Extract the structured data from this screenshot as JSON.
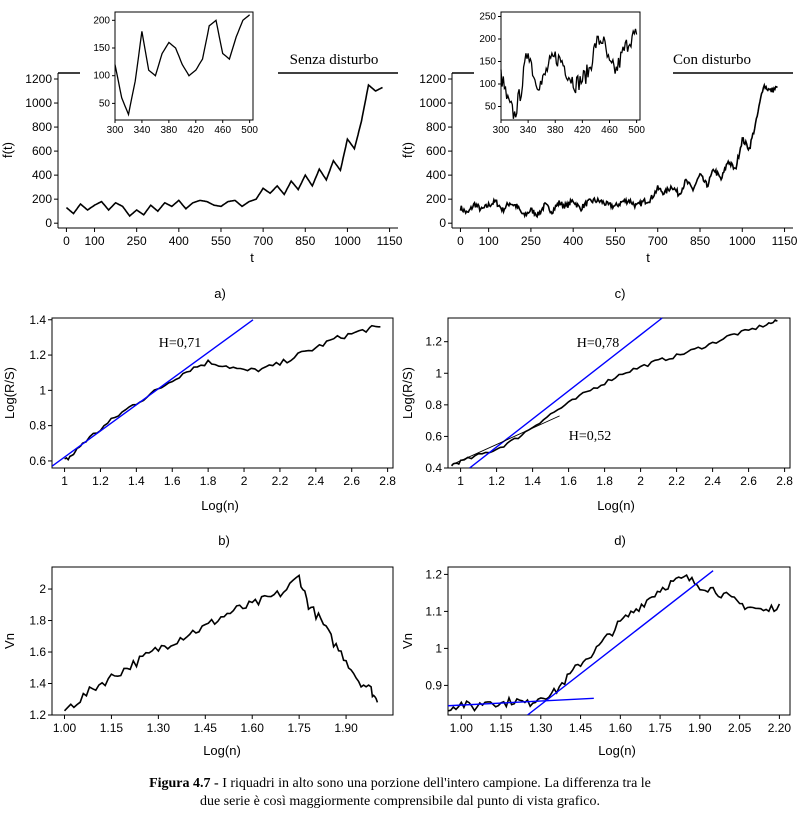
{
  "caption": {
    "label": "Figura 4.7 -",
    "line1": " I riquadri in alto sono una porzione dell'intero campione. La  differenza tra le",
    "line2": "due serie è così maggiormente comprensibile dal punto di vista grafico."
  },
  "chart_data": [
    {
      "id": "a",
      "type": "line",
      "panel_label": "a)",
      "annotation": "Senza disturbo",
      "xlabel": "t",
      "ylabel": "f(t)",
      "xlim": [
        -30,
        1180
      ],
      "ylim": [
        -40,
        1250
      ],
      "xticks": [
        0,
        100,
        250,
        400,
        550,
        700,
        850,
        1000,
        1150
      ],
      "yticks": [
        0,
        200,
        400,
        600,
        800,
        1000,
        1200
      ],
      "series": [
        {
          "color": "#000000",
          "noise": 0,
          "x": [
            0,
            25,
            50,
            75,
            100,
            125,
            150,
            175,
            200,
            225,
            250,
            275,
            300,
            325,
            350,
            375,
            400,
            425,
            450,
            475,
            500,
            525,
            550,
            575,
            600,
            625,
            650,
            675,
            700,
            725,
            750,
            775,
            800,
            825,
            850,
            875,
            900,
            925,
            950,
            975,
            1000,
            1025,
            1050,
            1075,
            1100,
            1125
          ],
          "y": [
            130,
            80,
            160,
            110,
            150,
            180,
            110,
            170,
            140,
            60,
            110,
            70,
            150,
            100,
            170,
            140,
            190,
            120,
            170,
            190,
            180,
            150,
            140,
            180,
            190,
            140,
            180,
            200,
            290,
            250,
            310,
            240,
            350,
            280,
            400,
            310,
            450,
            360,
            520,
            440,
            700,
            620,
            850,
            1150,
            1100,
            1130
          ]
        }
      ],
      "inset": {
        "x": [
          300,
          310,
          320,
          330,
          340,
          350,
          360,
          370,
          380,
          390,
          400,
          410,
          420,
          430,
          440,
          450,
          460,
          470,
          480,
          490,
          500
        ],
        "y": [
          120,
          60,
          30,
          90,
          180,
          110,
          100,
          140,
          160,
          150,
          120,
          100,
          110,
          130,
          190,
          200,
          140,
          130,
          170,
          200,
          210
        ],
        "xticks": [
          300,
          340,
          380,
          420,
          460,
          500
        ],
        "yticks": [
          50,
          100,
          150,
          200
        ],
        "xlim": [
          300,
          505
        ],
        "ylim": [
          20,
          215
        ]
      }
    },
    {
      "id": "c",
      "type": "line",
      "panel_label": "c)",
      "annotation": "Con disturbo",
      "xlabel": "t",
      "ylabel": "f(t)",
      "xlim": [
        -30,
        1180
      ],
      "ylim": [
        -40,
        1250
      ],
      "xticks": [
        0,
        100,
        250,
        400,
        550,
        700,
        850,
        1000,
        1150
      ],
      "yticks": [
        0,
        200,
        400,
        600,
        800,
        1000,
        1200
      ],
      "series": [
        {
          "color": "#000000",
          "noise": 25,
          "x": [
            0,
            25,
            50,
            75,
            100,
            125,
            150,
            175,
            200,
            225,
            250,
            275,
            300,
            325,
            350,
            375,
            400,
            425,
            450,
            475,
            500,
            525,
            550,
            575,
            600,
            625,
            650,
            675,
            700,
            725,
            750,
            775,
            800,
            825,
            850,
            875,
            900,
            925,
            950,
            975,
            1000,
            1025,
            1050,
            1075,
            1100,
            1125
          ],
          "y": [
            130,
            80,
            160,
            110,
            150,
            180,
            110,
            170,
            140,
            60,
            110,
            70,
            150,
            100,
            170,
            140,
            190,
            120,
            170,
            190,
            180,
            150,
            140,
            180,
            190,
            140,
            180,
            200,
            290,
            250,
            310,
            240,
            350,
            280,
            400,
            310,
            450,
            360,
            520,
            440,
            700,
            620,
            850,
            1150,
            1100,
            1130
          ]
        }
      ],
      "inset": {
        "x": [
          300,
          310,
          320,
          330,
          340,
          350,
          360,
          370,
          380,
          390,
          400,
          410,
          420,
          430,
          440,
          450,
          460,
          470,
          480,
          490,
          500
        ],
        "y": [
          120,
          60,
          30,
          90,
          180,
          110,
          100,
          140,
          160,
          150,
          120,
          100,
          110,
          130,
          190,
          200,
          140,
          130,
          170,
          200,
          210
        ],
        "xticks": [
          300,
          340,
          380,
          420,
          460,
          500
        ],
        "yticks": [
          50,
          100,
          150,
          200,
          250
        ],
        "xlim": [
          300,
          505
        ],
        "ylim": [
          20,
          260
        ],
        "noise": 20
      }
    },
    {
      "id": "b",
      "type": "line",
      "panel_label": "b)",
      "xlabel": "Log(n)",
      "ylabel": "Log(R/S)",
      "xlim": [
        0.93,
        2.83
      ],
      "ylim": [
        0.56,
        1.41
      ],
      "xticks": [
        1.0,
        1.2,
        1.4,
        1.6,
        1.8,
        2.0,
        2.2,
        2.4,
        2.6,
        2.8
      ],
      "yticks": [
        0.6,
        0.8,
        1.0,
        1.2,
        1.4
      ],
      "series": [
        {
          "color": "#000000",
          "noise": 0.015,
          "x": [
            1.0,
            1.05,
            1.1,
            1.2,
            1.3,
            1.4,
            1.5,
            1.6,
            1.7,
            1.8,
            1.9,
            2.0,
            2.1,
            2.2,
            2.3,
            2.4,
            2.5,
            2.6,
            2.7,
            2.76
          ],
          "y": [
            0.6,
            0.64,
            0.7,
            0.78,
            0.86,
            0.93,
            0.99,
            1.06,
            1.12,
            1.16,
            1.14,
            1.11,
            1.12,
            1.15,
            1.2,
            1.24,
            1.29,
            1.32,
            1.35,
            1.36
          ]
        }
      ],
      "fit_lines": [
        {
          "label": "H=0,71",
          "color": "#0000ff",
          "x": [
            0.93,
            2.05
          ],
          "y": [
            0.57,
            1.4
          ]
        }
      ]
    },
    {
      "id": "d",
      "type": "line",
      "panel_label": "d)",
      "xlabel": "Log(n)",
      "ylabel": "Log(R/S)",
      "xlim": [
        0.93,
        2.83
      ],
      "ylim": [
        0.4,
        1.35
      ],
      "xticks": [
        1.0,
        1.2,
        1.4,
        1.6,
        1.8,
        2.0,
        2.2,
        2.4,
        2.6,
        2.8
      ],
      "yticks": [
        0.4,
        0.6,
        0.8,
        1.0,
        1.2
      ],
      "series": [
        {
          "color": "#000000",
          "noise": 0.012,
          "x": [
            0.95,
            1.0,
            1.1,
            1.2,
            1.3,
            1.4,
            1.5,
            1.6,
            1.7,
            1.8,
            1.9,
            2.0,
            2.1,
            2.2,
            2.3,
            2.4,
            2.5,
            2.6,
            2.7,
            2.76
          ],
          "y": [
            0.42,
            0.44,
            0.48,
            0.52,
            0.58,
            0.66,
            0.74,
            0.81,
            0.88,
            0.94,
            1.0,
            1.04,
            1.08,
            1.11,
            1.15,
            1.19,
            1.24,
            1.27,
            1.31,
            1.33
          ]
        }
      ],
      "fit_lines": [
        {
          "label": "H=0,78",
          "color": "#0000ff",
          "x": [
            1.05,
            2.12
          ],
          "y": [
            0.4,
            1.35
          ]
        },
        {
          "label": "H=0,52",
          "color": "#000000",
          "x": [
            0.95,
            1.55
          ],
          "y": [
            0.42,
            0.73
          ]
        }
      ]
    },
    {
      "id": "e",
      "type": "line",
      "panel_label": "",
      "xlabel": "Log(n)",
      "ylabel": "Vn",
      "xlim": [
        0.96,
        2.05
      ],
      "ylim": [
        1.2,
        2.14
      ],
      "xticks": [
        1.0,
        1.15,
        1.3,
        1.45,
        1.6,
        1.75,
        1.9
      ],
      "xtick_labels": [
        "1.00",
        "1.15",
        "1.30",
        "1.45",
        "1.60",
        "1.75",
        "1.90"
      ],
      "yticks": [
        1.2,
        1.4,
        1.6,
        1.8,
        2.0
      ],
      "series": [
        {
          "color": "#000000",
          "noise": 0.03,
          "x": [
            1.0,
            1.05,
            1.1,
            1.15,
            1.2,
            1.25,
            1.3,
            1.35,
            1.4,
            1.45,
            1.5,
            1.55,
            1.6,
            1.65,
            1.7,
            1.75,
            1.78,
            1.82,
            1.86,
            1.9,
            1.94,
            1.98,
            2.0
          ],
          "y": [
            1.23,
            1.3,
            1.38,
            1.44,
            1.5,
            1.56,
            1.62,
            1.67,
            1.72,
            1.76,
            1.82,
            1.87,
            1.9,
            1.94,
            1.98,
            2.08,
            1.9,
            1.8,
            1.66,
            1.55,
            1.42,
            1.36,
            1.28
          ]
        }
      ]
    },
    {
      "id": "f",
      "type": "line",
      "panel_label": "",
      "xlabel": "Log(n)",
      "ylabel": "Vn",
      "xlim": [
        0.95,
        2.24
      ],
      "ylim": [
        0.82,
        1.22
      ],
      "xticks": [
        1.0,
        1.15,
        1.3,
        1.45,
        1.6,
        1.75,
        1.9,
        2.05,
        2.2
      ],
      "xtick_labels": [
        "1.00",
        "1.15",
        "1.30",
        "1.45",
        "1.60",
        "1.75",
        "1.90",
        "2.05",
        "2.20"
      ],
      "yticks": [
        0.9,
        1.0,
        1.1,
        1.2
      ],
      "series": [
        {
          "color": "#000000",
          "noise": 0.012,
          "x": [
            0.95,
            1.0,
            1.05,
            1.1,
            1.15,
            1.2,
            1.25,
            1.3,
            1.35,
            1.4,
            1.45,
            1.5,
            1.55,
            1.6,
            1.65,
            1.7,
            1.75,
            1.8,
            1.85,
            1.9,
            1.95,
            2.0,
            2.05,
            2.1,
            2.15,
            2.2
          ],
          "y": [
            0.84,
            0.85,
            0.84,
            0.86,
            0.85,
            0.86,
            0.85,
            0.87,
            0.88,
            0.92,
            0.96,
            0.99,
            1.03,
            1.07,
            1.1,
            1.13,
            1.16,
            1.18,
            1.19,
            1.17,
            1.16,
            1.14,
            1.12,
            1.11,
            1.1,
            1.12
          ]
        }
      ],
      "fit_lines": [
        {
          "color": "#0000ff",
          "x": [
            1.25,
            1.95
          ],
          "y": [
            0.82,
            1.21
          ]
        },
        {
          "color": "#0000ff",
          "x": [
            0.95,
            1.5
          ],
          "y": [
            0.845,
            0.865
          ]
        }
      ]
    }
  ]
}
